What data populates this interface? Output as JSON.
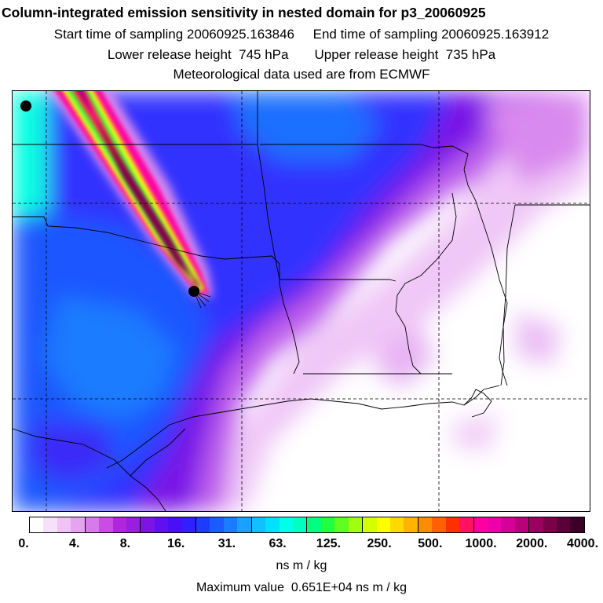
{
  "header": {
    "title": "Column-integrated emission sensitivity in nested domain for p3_20060925",
    "sampling_line": "Start time of sampling 20060925.163846     End time of sampling 20060925.163912",
    "release_line": "Lower release height  745 hPa       Upper release height  735 hPa",
    "met_line": "Meteorological data used are from ECMWF"
  },
  "colorbar": {
    "units": "ns m / kg",
    "tick_labels": [
      "0.",
      "4.",
      "8.",
      "16.",
      "31.",
      "63.",
      "125.",
      "250.",
      "500.",
      "1000.",
      "2000.",
      "4000."
    ],
    "colors": [
      "#ffffff",
      "#f7e0fa",
      "#f0c2f5",
      "#e6a3f0",
      "#d97aeb",
      "#c94de3",
      "#b026dd",
      "#9a1ee0",
      "#7d14e6",
      "#6010ee",
      "#4a10f5",
      "#3020ff",
      "#1e3cff",
      "#1a5cff",
      "#1a7cff",
      "#1aa0ff",
      "#10c0ff",
      "#00e0ff",
      "#00ffe8",
      "#00ffc0",
      "#00ff80",
      "#20ff40",
      "#60ff20",
      "#a0ff10",
      "#d4ff00",
      "#ffff00",
      "#ffd800",
      "#ffb400",
      "#ff8c00",
      "#ff6000",
      "#ff3000",
      "#ff1060",
      "#ff00a0",
      "#ee00a8",
      "#d40098",
      "#b8007c",
      "#9a0060",
      "#7a0048",
      "#5a0038",
      "#3c0028"
    ]
  },
  "map": {
    "release_marker": "release-point",
    "extra_marker": "corner-point"
  },
  "footer": {
    "max_value": "Maximum value  0.651E+04 ns m / kg"
  }
}
